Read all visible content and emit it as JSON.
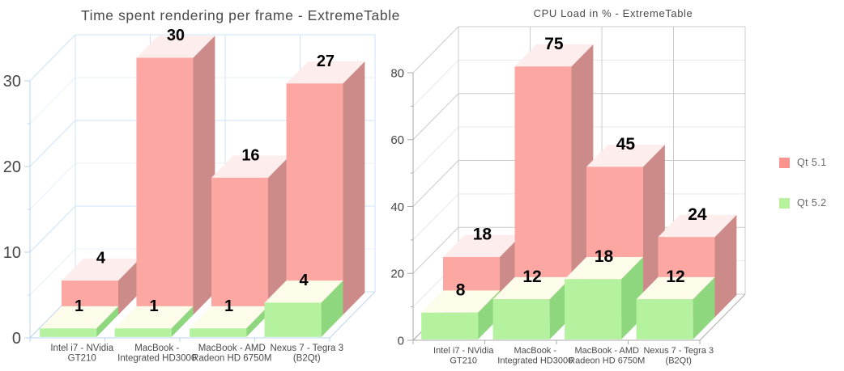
{
  "palette": {
    "qt51": {
      "front": "#fda7a3",
      "side": "#cc8b89",
      "top": "#fdedec",
      "legend": "#fa928d"
    },
    "qt52": {
      "front": "#b5f2a0",
      "side": "#8fd77f",
      "top": "#fdfbe9",
      "legend": "#b6f29e"
    }
  },
  "text_colors": {
    "title": "#4a4a4a",
    "tick": "#454545",
    "category": "#4a4a4a",
    "value": "#000000",
    "legend": "#666666"
  },
  "legend": {
    "position": "right",
    "items": [
      {
        "label": "Qt 5.1",
        "series_key": "qt51"
      },
      {
        "label": "Qt 5.2",
        "series_key": "qt52"
      }
    ]
  },
  "chart_data": [
    {
      "type": "bar",
      "style": "3d-column",
      "title": "Time spent rendering per frame - ExtremeTable",
      "categories": [
        "Intel i7 - NVidia GT210",
        "MacBook - Integrated HD3000",
        "MacBook - AMD Radeon HD 6750M",
        "Nexus 7 - Tegra 3 (B2Qt)"
      ],
      "category_label_lines": [
        [
          "Intel i7 - NVidia",
          "GT210"
        ],
        [
          "MacBook -",
          "Integrated HD3000"
        ],
        [
          "MacBook - AMD",
          "Radeon HD 6750M"
        ],
        [
          "Nexus 7 - Tegra 3",
          "(B2Qt)"
        ]
      ],
      "series": [
        {
          "name": "Qt 5.1",
          "key": "qt51",
          "values": [
            4,
            30,
            16,
            27
          ]
        },
        {
          "name": "Qt 5.2",
          "key": "qt52",
          "values": [
            1,
            1,
            1,
            4
          ]
        }
      ],
      "data_labels": true,
      "ylim": [
        0,
        30
      ],
      "yticks": [
        0,
        10,
        20,
        30
      ],
      "minor_tick_step": 5,
      "xlabel": "",
      "ylabel": "",
      "grid": {
        "major": "#cfe3f7",
        "minor": "#e7f0fb",
        "axis": "#bad6f0"
      },
      "legend_visible": false
    },
    {
      "type": "bar",
      "style": "3d-column",
      "title": "CPU Load in % - ExtremeTable",
      "categories": [
        "Intel i7 - NVidia GT210",
        "MacBook - Integrated HD3000",
        "MacBook - AMD Radeon HD 6750M",
        "Nexus 7 - Tegra 3 (B2Qt)"
      ],
      "category_label_lines": [
        [
          "Intel i7 - NVidia",
          "GT210"
        ],
        [
          "MacBook -",
          "Integrated HD3000"
        ],
        [
          "MacBook - AMD",
          "Radeon HD 6750M"
        ],
        [
          "Nexus 7 - Tegra 3",
          "(B2Qt)"
        ]
      ],
      "series": [
        {
          "name": "Qt 5.1",
          "key": "qt51",
          "values": [
            18,
            75,
            45,
            24
          ]
        },
        {
          "name": "Qt 5.2",
          "key": "qt52",
          "values": [
            8,
            12,
            18,
            12
          ]
        }
      ],
      "data_labels": true,
      "ylim": [
        0,
        80
      ],
      "yticks": [
        0,
        20,
        40,
        60,
        80
      ],
      "minor_tick_step": 10,
      "xlabel": "",
      "ylabel": "",
      "grid": {
        "major": "#cbcbcb",
        "minor": "#e9e9e9",
        "axis": "#ababab"
      },
      "legend_visible": true
    }
  ]
}
